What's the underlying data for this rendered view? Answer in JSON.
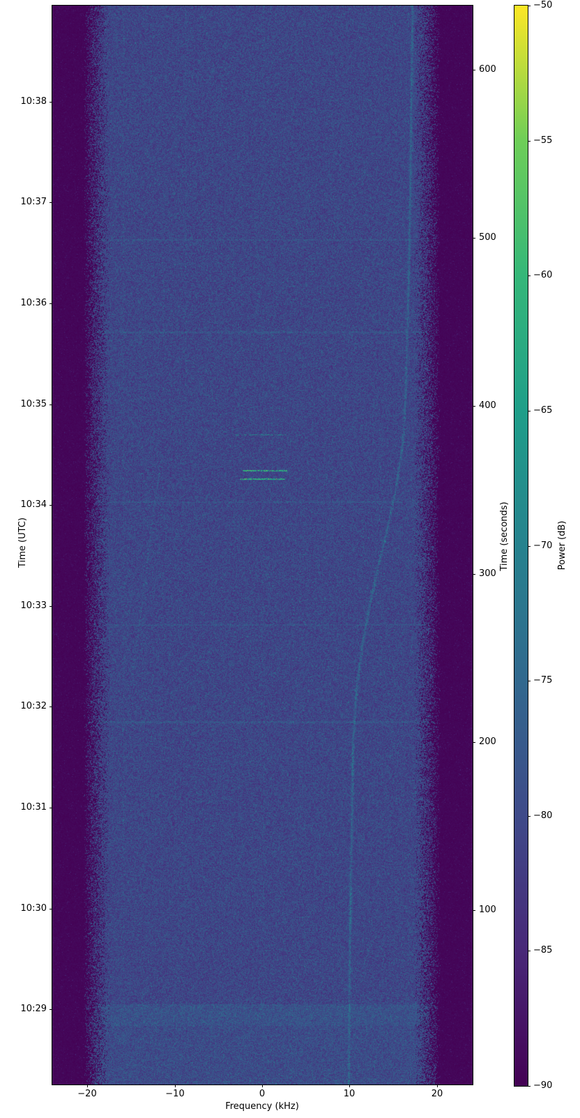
{
  "chart_data": {
    "type": "heatmap",
    "subtype": "spectrogram_waterfall",
    "title": "",
    "x_axis": {
      "label": "Frequency (kHz)",
      "lim": [
        -24.0,
        24.1
      ],
      "ticks": [
        {
          "v": -20,
          "label": "−20"
        },
        {
          "v": -10,
          "label": "−10"
        },
        {
          "v": 0,
          "label": "0"
        },
        {
          "v": 10,
          "label": "10"
        },
        {
          "v": 20,
          "label": "20"
        }
      ]
    },
    "y_axis_left": {
      "label": "Time (UTC)",
      "ticks": [
        {
          "t": 581,
          "label": "10:38"
        },
        {
          "t": 521,
          "label": "10:37"
        },
        {
          "t": 461,
          "label": "10:36"
        },
        {
          "t": 401,
          "label": "10:35"
        },
        {
          "t": 341,
          "label": "10:34"
        },
        {
          "t": 281,
          "label": "10:33"
        },
        {
          "t": 221,
          "label": "10:32"
        },
        {
          "t": 161,
          "label": "10:31"
        },
        {
          "t": 101,
          "label": "10:30"
        },
        {
          "t": 41,
          "label": "10:29"
        }
      ]
    },
    "y_axis_right": {
      "label": "Time (seconds)",
      "lim": [
        -3.7,
        638.2
      ],
      "ticks": [
        {
          "t": 600,
          "label": "600"
        },
        {
          "t": 500,
          "label": "500"
        },
        {
          "t": 400,
          "label": "400"
        },
        {
          "t": 300,
          "label": "300"
        },
        {
          "t": 200,
          "label": "200"
        },
        {
          "t": 100,
          "label": "100"
        }
      ]
    },
    "colorbar": {
      "label": "Power (dB)",
      "lim": [
        -90,
        -50
      ],
      "ticks": [
        {
          "v": -50,
          "label": "−50"
        },
        {
          "v": -55,
          "label": "−55"
        },
        {
          "v": -60,
          "label": "−60"
        },
        {
          "v": -65,
          "label": "−65"
        },
        {
          "v": -70,
          "label": "−70"
        },
        {
          "v": -75,
          "label": "−75"
        },
        {
          "v": -80,
          "label": "−80"
        },
        {
          "v": -85,
          "label": "−85"
        },
        {
          "v": -90,
          "label": "−90"
        }
      ],
      "colormap_name": "viridis",
      "colormap_anchors": [
        [
          0.0,
          "#440154"
        ],
        [
          0.125,
          "#482878"
        ],
        [
          0.25,
          "#3e4a89"
        ],
        [
          0.375,
          "#31688e"
        ],
        [
          0.5,
          "#26828e"
        ],
        [
          0.625,
          "#1f9e89"
        ],
        [
          0.75,
          "#35b779"
        ],
        [
          0.875,
          "#6ece58"
        ],
        [
          1.0,
          "#fde725"
        ]
      ]
    },
    "noise_model": {
      "passband_base_db": -84.5,
      "passband_spread_db": 8,
      "speckle_prob": 0.035,
      "speckle_db": [
        3,
        7
      ],
      "edge_start_khz": 17.3,
      "edge_full_khz": 20.4,
      "floor_db": -90,
      "seed": 1337
    },
    "signal_features": {
      "doppler_curve": {
        "points_f_t": [
          [
            17.2,
            638
          ],
          [
            17.05,
            579
          ],
          [
            16.9,
            517
          ],
          [
            16.65,
            455
          ],
          [
            16.4,
            409
          ],
          [
            16.2,
            384
          ],
          [
            15.85,
            370
          ],
          [
            15.3,
            351
          ],
          [
            14.4,
            329
          ],
          [
            13.3,
            305
          ],
          [
            12.2,
            280
          ],
          [
            11.4,
            256
          ],
          [
            10.8,
            233
          ],
          [
            10.4,
            202
          ],
          [
            10.3,
            164
          ],
          [
            10.1,
            110
          ],
          [
            10.0,
            61
          ],
          [
            9.9,
            -3
          ]
        ],
        "amp_db": 5.2,
        "bright_t_ranges": [
          [
            180,
            195
          ],
          [
            85,
            114
          ]
        ],
        "bright_amp_db": 7.5,
        "gap_prob": 0.18
      },
      "faint_curve": {
        "points_f_t": [
          [
            -11.6,
            366
          ],
          [
            -12.3,
            343
          ],
          [
            -13.0,
            314
          ],
          [
            -13.7,
            285
          ],
          [
            -14.3,
            262
          ],
          [
            -14.9,
            241
          ],
          [
            -15.2,
            227
          ]
        ],
        "amp_db": 2.8,
        "gap_prob": 0.45
      },
      "bursts": [
        {
          "t": 383,
          "f0": -3.0,
          "f1": 2.7,
          "rows": 1,
          "level": "faint"
        },
        {
          "t": 362,
          "f0": -2.2,
          "f1": 2.9,
          "rows": 2,
          "level": "bright"
        },
        {
          "t": 357,
          "f0": -2.5,
          "f1": 2.6,
          "rows": 2,
          "level": "bright"
        }
      ],
      "row_artifacts_t": [
        499,
        444,
        343,
        270,
        212
      ],
      "bottom_band": {
        "t0": 31,
        "t1": 44,
        "boost_db": 1.8
      },
      "below_band_boost_db": 0.8,
      "vertical_lines": [
        {
          "f": -15.85,
          "t0": -4,
          "t1": 638,
          "boost_db": 2.2
        },
        {
          "f": -8.75,
          "t0": 380,
          "t1": 638,
          "boost_db": 2.4
        },
        {
          "f": 0.15,
          "t0": -4,
          "t1": 638,
          "boost_db": 1.6
        }
      ]
    }
  }
}
